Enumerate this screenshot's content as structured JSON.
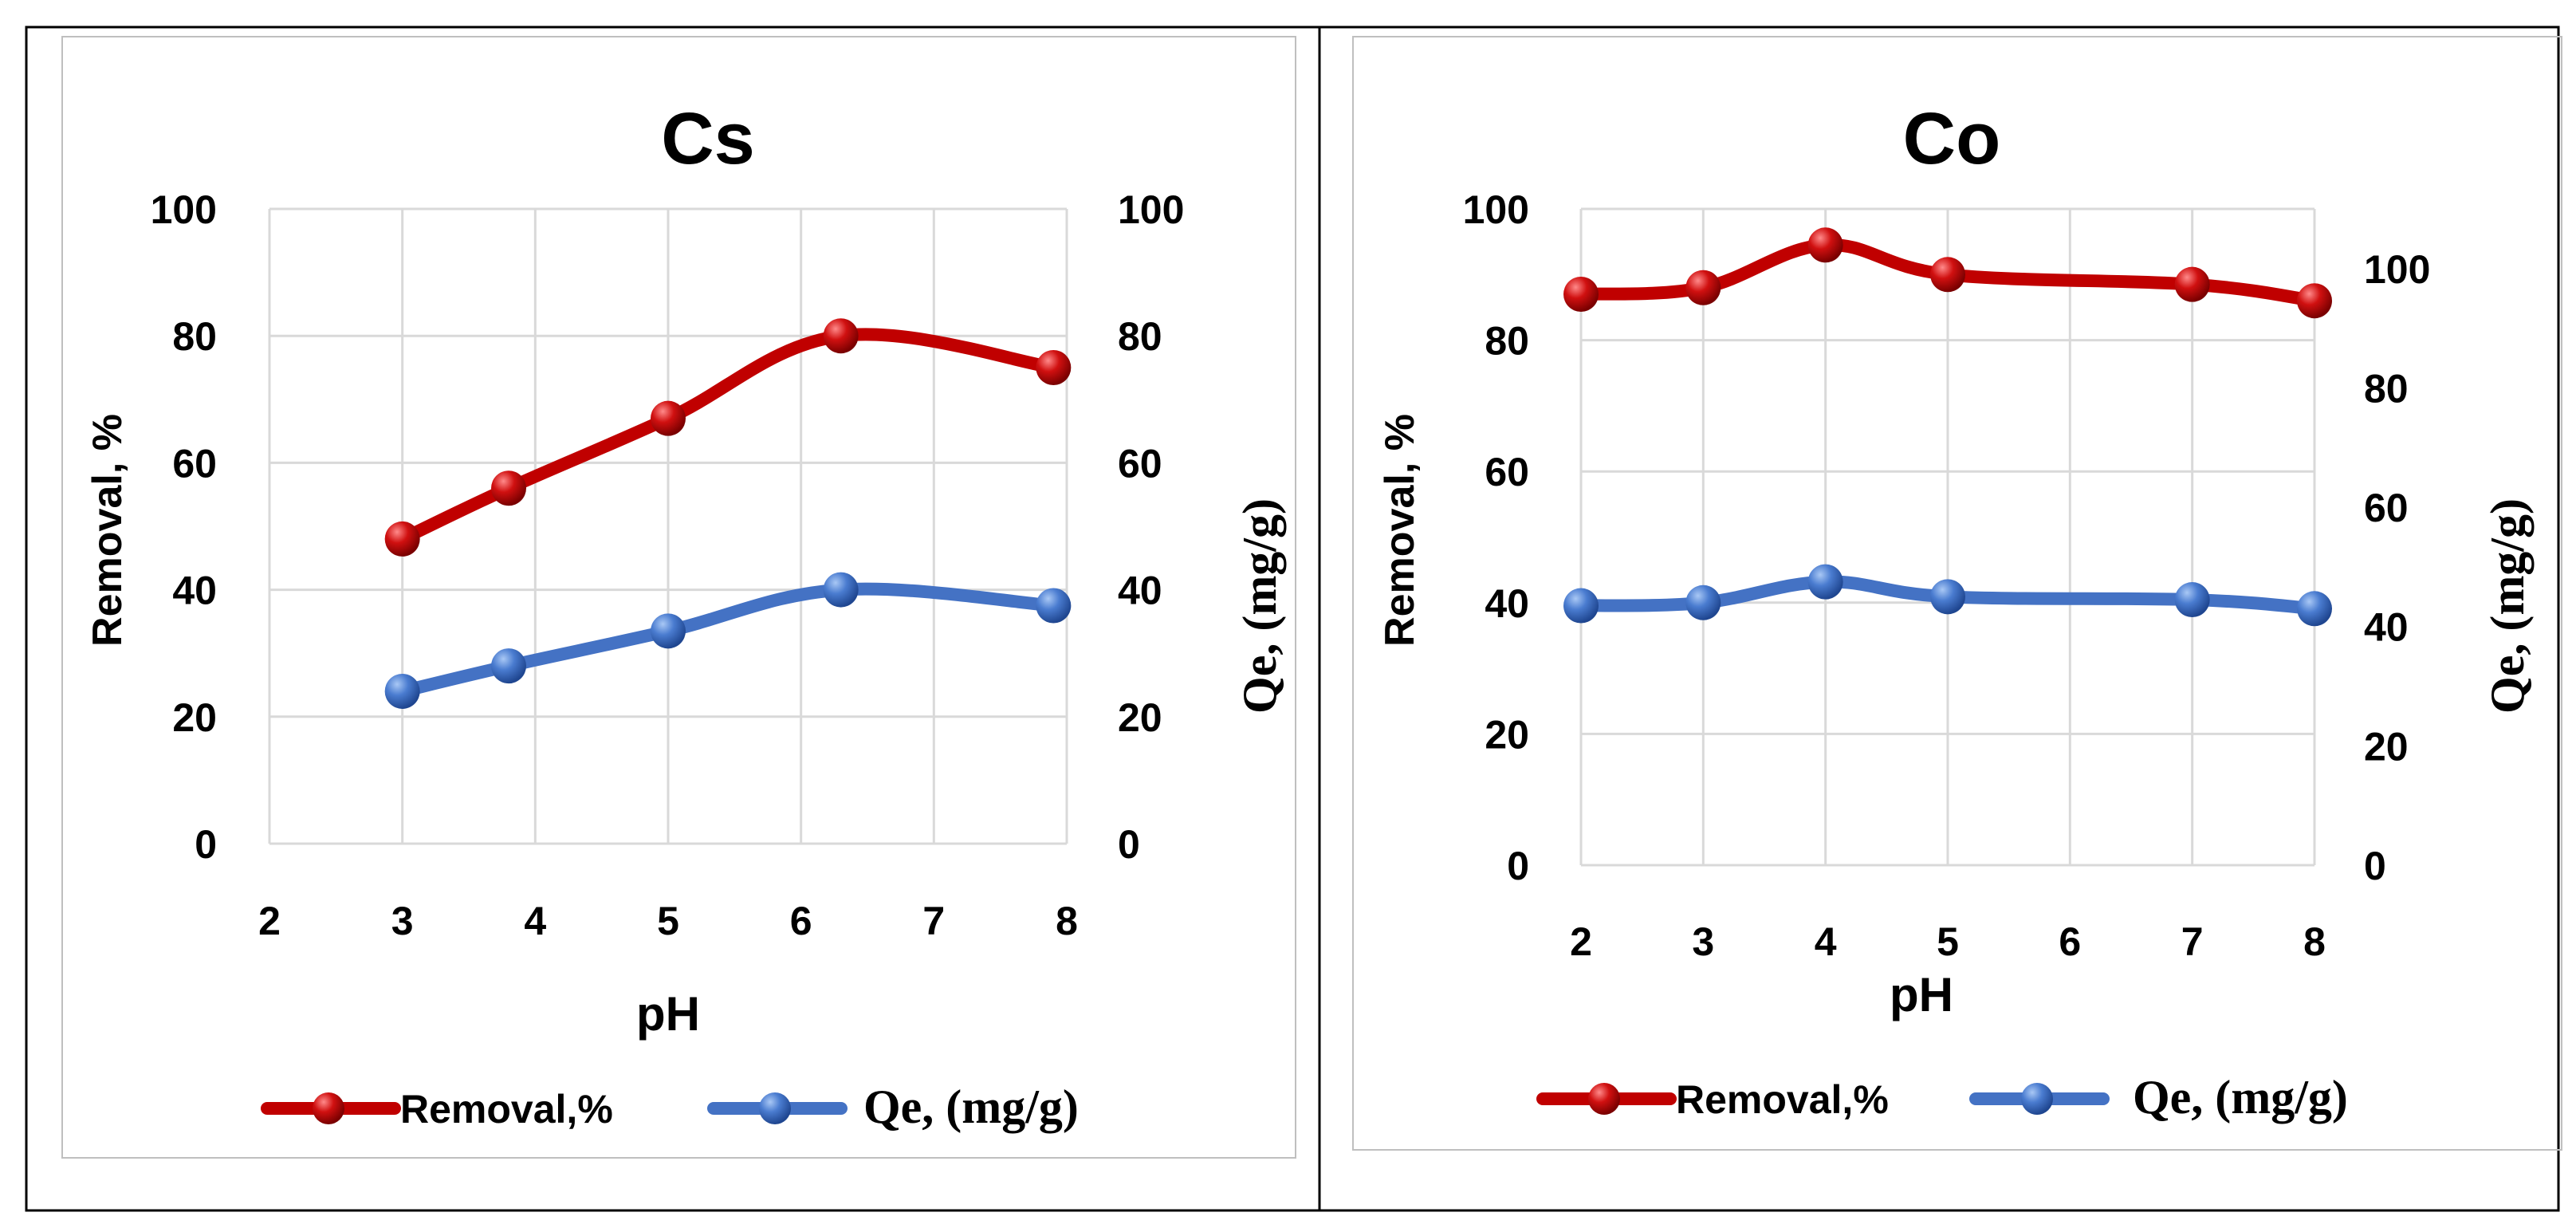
{
  "colors": {
    "removal": "#C00000",
    "removal_dark": "#8B0000",
    "qe": "#4472C4",
    "qe_dark": "#2F5597",
    "grid": "#D9D9D9",
    "border": "#000000",
    "inner_border": "#BFBFBF",
    "text": "#000000"
  },
  "chart_data": [
    {
      "type": "line",
      "title": "Cs",
      "xlabel": "pH",
      "ylabel": "Removal, %",
      "y2label": "Qe, (mg/g)",
      "xlim": [
        2,
        8
      ],
      "ylim": [
        0,
        100
      ],
      "y2lim": [
        0,
        100
      ],
      "xticks": [
        "2",
        "3",
        "4",
        "5",
        "6",
        "7",
        "8"
      ],
      "yticks": [
        "0",
        "20",
        "40",
        "60",
        "80",
        "100"
      ],
      "y2ticks": [
        "0",
        "20",
        "40",
        "60",
        "80",
        "100"
      ],
      "grid": true,
      "legend": "bottom",
      "series": [
        {
          "name": "Removal,%",
          "axis": "left",
          "x": [
            3,
            3.8,
            5,
            6.3,
            7.9
          ],
          "values": [
            48,
            56,
            67,
            80,
            75
          ]
        },
        {
          "name": "Qe, (mg/g)",
          "axis": "right",
          "x": [
            3,
            3.8,
            5,
            6.3,
            7.9
          ],
          "values": [
            24,
            28,
            33.5,
            40,
            37.5
          ]
        }
      ]
    },
    {
      "type": "line",
      "title": "Co",
      "xlabel": "pH",
      "ylabel": "Removal, %",
      "y2label": "Qe, (mg/g)",
      "xlim": [
        2,
        8
      ],
      "ylim": [
        0,
        100
      ],
      "y2lim": [
        0,
        110
      ],
      "xticks": [
        "2",
        "3",
        "4",
        "5",
        "6",
        "7",
        "8"
      ],
      "yticks": [
        "0",
        "20",
        "40",
        "60",
        "80",
        "100"
      ],
      "y2ticks": [
        "0",
        "20",
        "40",
        "60",
        "80",
        "100"
      ],
      "y2tick_values": [
        0,
        20,
        40,
        60,
        80,
        100
      ],
      "grid": true,
      "legend": "bottom",
      "series": [
        {
          "name": "Removal,%",
          "axis": "left",
          "x": [
            2,
            3,
            4,
            5,
            7,
            8
          ],
          "values": [
            87,
            88,
            94.5,
            90,
            88.5,
            86
          ]
        },
        {
          "name": "Qe, (mg/g)",
          "axis": "right",
          "x": [
            2,
            3,
            4,
            5,
            7,
            8
          ],
          "values": [
            43.5,
            44,
            47.5,
            45,
            44.5,
            43
          ]
        }
      ]
    }
  ]
}
